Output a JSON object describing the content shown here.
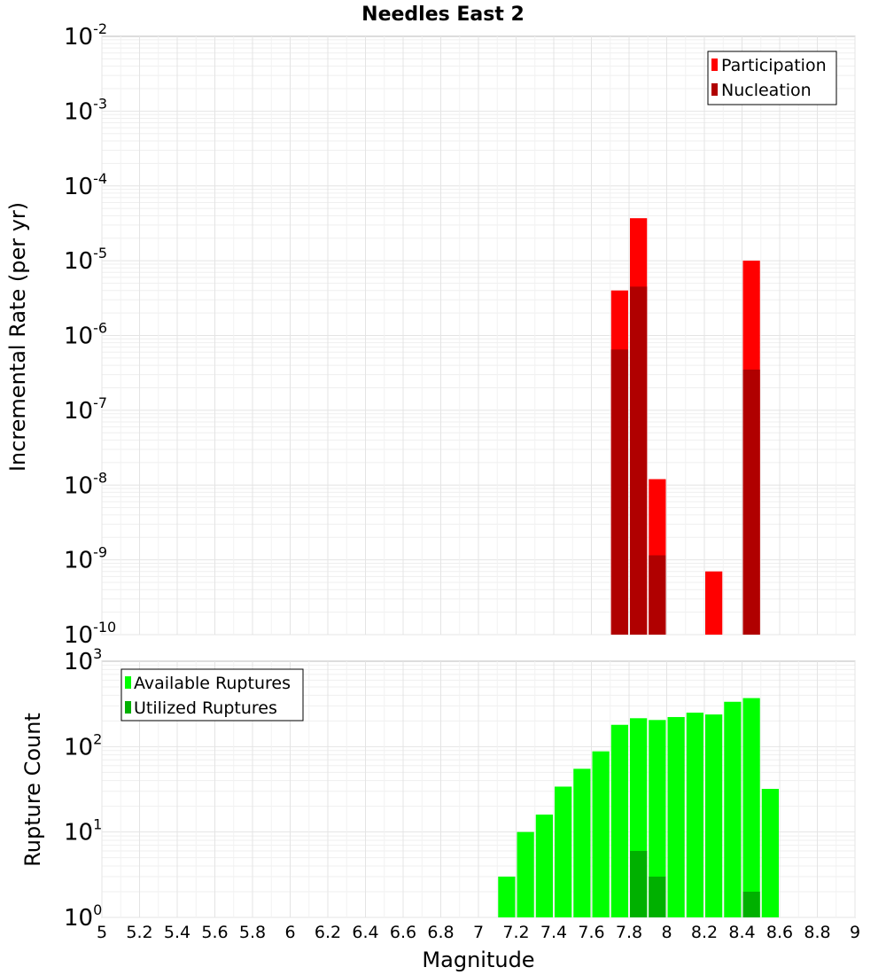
{
  "chart_data": [
    {
      "type": "bar",
      "title": "Needles East 2",
      "xlabel": "",
      "ylabel": "Incremental Rate (per yr)",
      "yscale": "log",
      "ylim_exponent": [
        -10,
        -2
      ],
      "xlim": [
        5,
        9
      ],
      "bin_width": 0.1,
      "legend_position": "top-right",
      "series": [
        {
          "name": "Participation",
          "color": "#ff0000",
          "points": [
            {
              "x": 7.75,
              "y": 4e-06
            },
            {
              "x": 7.85,
              "y": 3.7e-05
            },
            {
              "x": 7.95,
              "y": 1.2e-08
            },
            {
              "x": 8.25,
              "y": 7e-10
            },
            {
              "x": 8.45,
              "y": 1e-05
            }
          ]
        },
        {
          "name": "Nucleation",
          "color": "#b00000",
          "points": [
            {
              "x": 7.75,
              "y": 6.5e-07
            },
            {
              "x": 7.85,
              "y": 4.5e-06
            },
            {
              "x": 7.95,
              "y": 1.15e-09
            },
            {
              "x": 8.45,
              "y": 3.5e-07
            }
          ]
        }
      ]
    },
    {
      "type": "bar",
      "title": "",
      "xlabel": "Magnitude",
      "ylabel": "Rupture Count",
      "yscale": "log",
      "ylim_exponent": [
        0,
        3
      ],
      "xlim": [
        5,
        9
      ],
      "bin_width": 0.1,
      "legend_position": "top-left",
      "series": [
        {
          "name": "Available Ruptures",
          "color": "#00ff00",
          "points": [
            {
              "x": 7.05,
              "y": 1
            },
            {
              "x": 7.15,
              "y": 3
            },
            {
              "x": 7.25,
              "y": 10
            },
            {
              "x": 7.35,
              "y": 16
            },
            {
              "x": 7.45,
              "y": 34
            },
            {
              "x": 7.55,
              "y": 55
            },
            {
              "x": 7.65,
              "y": 88
            },
            {
              "x": 7.75,
              "y": 180
            },
            {
              "x": 7.85,
              "y": 215
            },
            {
              "x": 7.95,
              "y": 205
            },
            {
              "x": 8.05,
              "y": 222
            },
            {
              "x": 8.15,
              "y": 250
            },
            {
              "x": 8.25,
              "y": 238
            },
            {
              "x": 8.35,
              "y": 335
            },
            {
              "x": 8.45,
              "y": 370
            },
            {
              "x": 8.55,
              "y": 32
            }
          ]
        },
        {
          "name": "Utilized Ruptures",
          "color": "#00b000",
          "points": [
            {
              "x": 7.75,
              "y": 1
            },
            {
              "x": 7.85,
              "y": 6
            },
            {
              "x": 7.95,
              "y": 3
            },
            {
              "x": 8.25,
              "y": 1
            },
            {
              "x": 8.45,
              "y": 2
            }
          ]
        }
      ]
    }
  ],
  "x_ticks": [
    "5",
    "5.2",
    "5.4",
    "5.6",
    "5.8",
    "6",
    "6.2",
    "6.4",
    "6.6",
    "6.8",
    "7",
    "7.2",
    "7.4",
    "7.6",
    "7.8",
    "8",
    "8.2",
    "8.4",
    "8.6",
    "8.8",
    "9"
  ],
  "top_y_ticks": [
    {
      "base": "10",
      "exp": "-10"
    },
    {
      "base": "10",
      "exp": "-9"
    },
    {
      "base": "10",
      "exp": "-8"
    },
    {
      "base": "10",
      "exp": "-7"
    },
    {
      "base": "10",
      "exp": "-6"
    },
    {
      "base": "10",
      "exp": "-5"
    },
    {
      "base": "10",
      "exp": "-4"
    },
    {
      "base": "10",
      "exp": "-3"
    },
    {
      "base": "10",
      "exp": "-2"
    }
  ],
  "bottom_y_ticks": [
    {
      "base": "10",
      "exp": "0"
    },
    {
      "base": "10",
      "exp": "1"
    },
    {
      "base": "10",
      "exp": "2"
    },
    {
      "base": "10",
      "exp": "3"
    }
  ]
}
